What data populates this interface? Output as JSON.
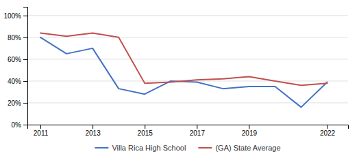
{
  "chart_data": {
    "type": "line",
    "x": [
      2011,
      2012,
      2013,
      2014,
      2015,
      2016,
      2017,
      2018,
      2019,
      2020,
      2021,
      2022
    ],
    "series": [
      {
        "name": "Villa Rica High School",
        "color": "#4472c4",
        "values": [
          0.8,
          0.65,
          0.7,
          0.33,
          0.28,
          0.4,
          0.39,
          0.33,
          0.35,
          0.35,
          0.16,
          0.39
        ]
      },
      {
        "name": "(GA) State Average",
        "color": "#c0504d",
        "values": [
          0.84,
          0.81,
          0.84,
          0.8,
          0.38,
          0.39,
          0.41,
          0.42,
          0.44,
          0.4,
          0.36,
          0.38
        ]
      }
    ],
    "xlim": [
      2010.5,
      2022.8
    ],
    "xticks": [
      2011,
      2013,
      2015,
      2017,
      2019,
      2022
    ],
    "ylim": [
      0.0,
      1.08
    ],
    "yticks": [
      {
        "value": 0.0,
        "label": "0%"
      },
      {
        "value": 0.2,
        "label": "20%"
      },
      {
        "value": 0.4,
        "label": "40%"
      },
      {
        "value": 0.6,
        "label": "60%"
      },
      {
        "value": 0.8,
        "label": "80%"
      },
      {
        "value": 1.0,
        "label": "100%"
      }
    ],
    "grid": true,
    "legend": "bottom"
  }
}
